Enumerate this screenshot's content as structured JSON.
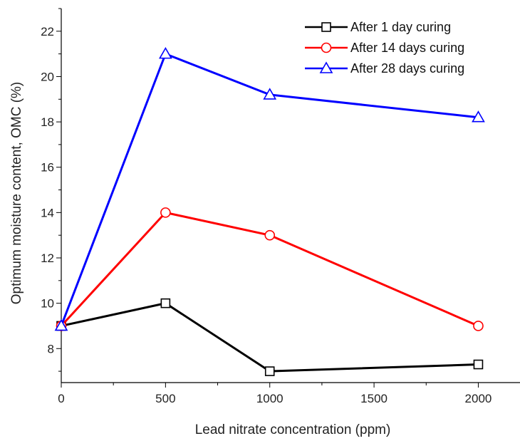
{
  "chart_data": {
    "type": "line",
    "title": "",
    "xlabel": "Lead nitrate concentration (ppm)",
    "ylabel": "Optimum moisture content, OMC (%)",
    "xlim": [
      0,
      2200
    ],
    "ylim": [
      6.5,
      23
    ],
    "xticks": [
      0,
      500,
      1000,
      1500,
      2000
    ],
    "yticks": [
      8,
      10,
      12,
      14,
      16,
      18,
      20,
      22
    ],
    "x": [
      0,
      500,
      1000,
      2000
    ],
    "legend_position": "top-right",
    "grid": false,
    "series": [
      {
        "name": "After 1 day curing",
        "color": "#000000",
        "marker": "square",
        "values": [
          9.0,
          10.0,
          7.0,
          7.3
        ]
      },
      {
        "name": "After 14 days curing",
        "color": "#ff0000",
        "marker": "circle",
        "values": [
          9.0,
          14.0,
          13.0,
          9.0
        ]
      },
      {
        "name": "After 28 days curing",
        "color": "#0000ff",
        "marker": "triangle",
        "values": [
          9.0,
          21.0,
          19.2,
          18.2
        ]
      }
    ]
  }
}
